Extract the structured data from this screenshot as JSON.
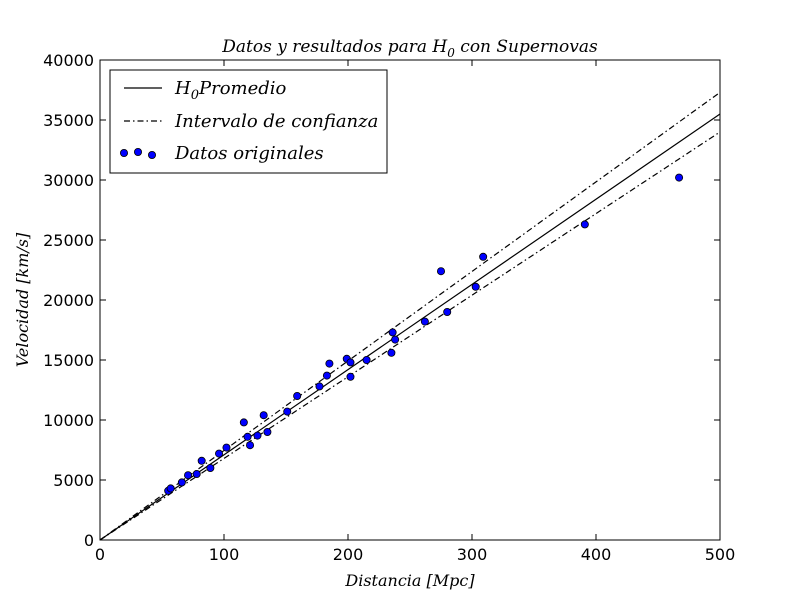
{
  "chart_data": {
    "type": "scatter",
    "title": "Datos y resultados para H",
    "title_sub": "0",
    "title_suffix": " con Supernovas",
    "xlabel_main": "Distancia ",
    "xlabel_unit": "[Mpc]",
    "ylabel_main": "Velocidad ",
    "ylabel_unit": "[km/s]",
    "xlim": [
      0,
      500
    ],
    "ylim": [
      0,
      40000
    ],
    "xticks": [
      0,
      100,
      200,
      300,
      400,
      500
    ],
    "yticks": [
      0,
      5000,
      10000,
      15000,
      20000,
      25000,
      30000,
      35000,
      40000
    ],
    "grid": false,
    "legend_position": "upper-left",
    "legend": [
      {
        "key": "mean",
        "prefix": "H",
        "sub": "0",
        "label": "Promedio",
        "style": "solid"
      },
      {
        "key": "ci",
        "label": "Intervalo de confianza",
        "style": "dashdot"
      },
      {
        "key": "data",
        "label": "Datos originales",
        "style": "marker"
      }
    ],
    "lines": [
      {
        "name": "H0 Promedio",
        "x": [
          0,
          500
        ],
        "y": [
          0,
          35500
        ],
        "style": "solid"
      },
      {
        "name": "Intervalo de confianza (sup)",
        "x": [
          0,
          500
        ],
        "y": [
          0,
          37300
        ],
        "style": "dashdot"
      },
      {
        "name": "Intervalo de confianza (inf)",
        "x": [
          0,
          500
        ],
        "y": [
          0,
          34000
        ],
        "style": "dashdot"
      }
    ],
    "points": {
      "x": [
        55,
        57,
        66,
        71,
        78,
        82,
        89,
        96,
        102,
        116,
        119,
        121,
        127,
        132,
        135,
        151,
        159,
        177,
        183,
        185,
        199,
        202,
        202,
        215,
        235,
        236,
        238,
        262,
        275,
        280,
        303,
        309,
        391,
        467
      ],
      "y": [
        4100,
        4300,
        4800,
        5400,
        5500,
        6600,
        6000,
        7200,
        7700,
        9800,
        8600,
        7900,
        8700,
        10400,
        9000,
        10700,
        12000,
        12800,
        13700,
        14700,
        15100,
        14800,
        13600,
        15000,
        15600,
        17300,
        16700,
        18200,
        22400,
        19000,
        21100,
        23600,
        26300,
        30200
      ]
    },
    "colors": {
      "marker_fill": "#0000ff",
      "marker_stroke": "#000000",
      "line": "#000000"
    }
  }
}
